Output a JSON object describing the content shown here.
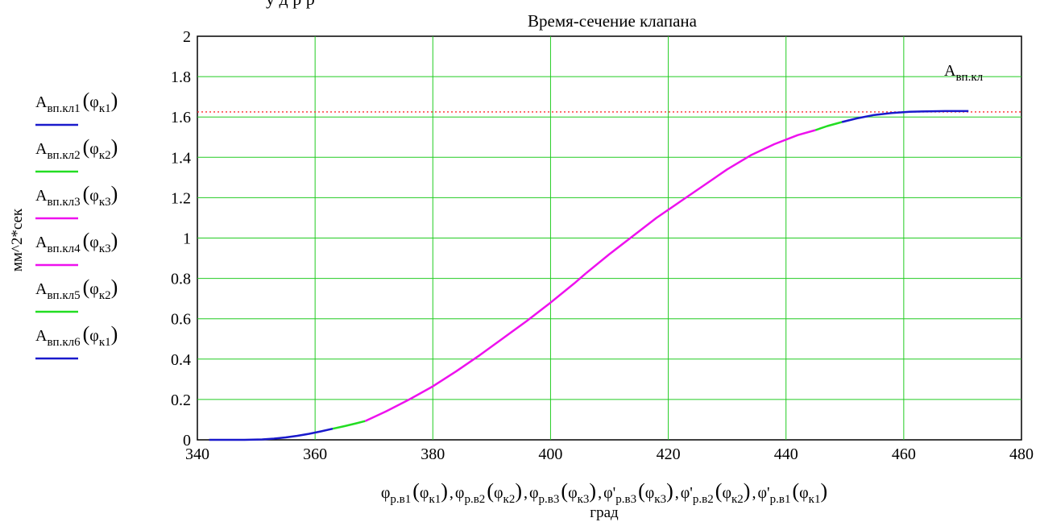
{
  "header_fragment": "у        д   р        р",
  "chart_data": {
    "type": "line",
    "title": "Время-сечение клапана",
    "ylabel": "мм^2*сек",
    "xlabel_units": "град",
    "xlim": [
      340,
      480
    ],
    "ylim": [
      0,
      2
    ],
    "x_ticks": [
      340,
      360,
      380,
      400,
      420,
      440,
      460,
      480
    ],
    "y_ticks": [
      0,
      0.2,
      0.4,
      0.6,
      0.8,
      1,
      1.2,
      1.4,
      1.6,
      1.8,
      2
    ],
    "x_tick_labels": [
      "340",
      "360",
      "380",
      "400",
      "420",
      "440",
      "460",
      "480"
    ],
    "y_tick_labels": [
      "0",
      "0.2",
      "0.4",
      "0.6",
      "0.8",
      "1",
      "1.2",
      "1.4",
      "1.6",
      "1.8",
      "2"
    ],
    "grid": true,
    "grid_color": "#22cc22",
    "reference_line": {
      "label_main": "A",
      "label_sub": "вп.кл",
      "y": 1.625,
      "color": "#ff2a2a",
      "style": "dotted"
    },
    "xlabel_parts": [
      {
        "prime": "",
        "sub": "р.в1",
        "arg_sub": "к1"
      },
      {
        "prime": "",
        "sub": "р.в2",
        "arg_sub": "к2"
      },
      {
        "prime": "",
        "sub": "р.в3",
        "arg_sub": "к3"
      },
      {
        "prime": "'",
        "sub": "р.в3",
        "arg_sub": "к3"
      },
      {
        "prime": "'",
        "sub": "р.в2",
        "arg_sub": "к2"
      },
      {
        "prime": "'",
        "sub": "р.в1",
        "arg_sub": "к1"
      }
    ],
    "series": [
      {
        "name": "Aвп.кл1(φк1)",
        "legend_sub": "вп.кл1",
        "legend_arg_sub": "к1",
        "color": "#1a1acc",
        "x": [
          342,
          345,
          348,
          351,
          353,
          355,
          357,
          359,
          361,
          363
        ],
        "y": [
          0,
          0,
          0,
          0.002,
          0.006,
          0.012,
          0.02,
          0.03,
          0.042,
          0.055
        ]
      },
      {
        "name": "Aвп.кл2(φк2)",
        "legend_sub": "вп.кл2",
        "legend_arg_sub": "к2",
        "color": "#22dd22",
        "x": [
          363,
          365,
          367,
          368.5
        ],
        "y": [
          0.055,
          0.068,
          0.082,
          0.093
        ]
      },
      {
        "name": "Aвп.кл3(φк3)",
        "legend_sub": "вп.кл3",
        "legend_arg_sub": "к3",
        "color": "#ee11ee",
        "x": [
          368.5,
          372,
          376,
          380,
          384,
          388,
          392,
          396,
          400,
          404,
          406
        ],
        "y": [
          0.093,
          0.14,
          0.2,
          0.265,
          0.34,
          0.42,
          0.505,
          0.59,
          0.68,
          0.775,
          0.825
        ]
      },
      {
        "name": "Aвп.кл4(φк3)",
        "legend_sub": "вп.кл4",
        "legend_arg_sub": "к3",
        "color": "#ee11ee",
        "x": [
          406,
          410,
          414,
          418,
          422,
          426,
          430,
          434,
          438,
          442,
          445
        ],
        "y": [
          0.825,
          0.92,
          1.01,
          1.1,
          1.18,
          1.26,
          1.34,
          1.41,
          1.465,
          1.51,
          1.535
        ]
      },
      {
        "name": "Aвп.кл5(φк2)",
        "legend_sub": "вп.кл5",
        "legend_arg_sub": "к2",
        "color": "#22dd22",
        "x": [
          445,
          447,
          449.5
        ],
        "y": [
          1.535,
          1.555,
          1.575
        ]
      },
      {
        "name": "Aвп.кл6(φк1)",
        "legend_sub": "вп.кл6",
        "legend_arg_sub": "к1",
        "color": "#1a1acc",
        "x": [
          449.5,
          452,
          455,
          458,
          461,
          464,
          467,
          471
        ],
        "y": [
          1.575,
          1.593,
          1.61,
          1.62,
          1.626,
          1.628,
          1.629,
          1.629
        ]
      }
    ]
  }
}
